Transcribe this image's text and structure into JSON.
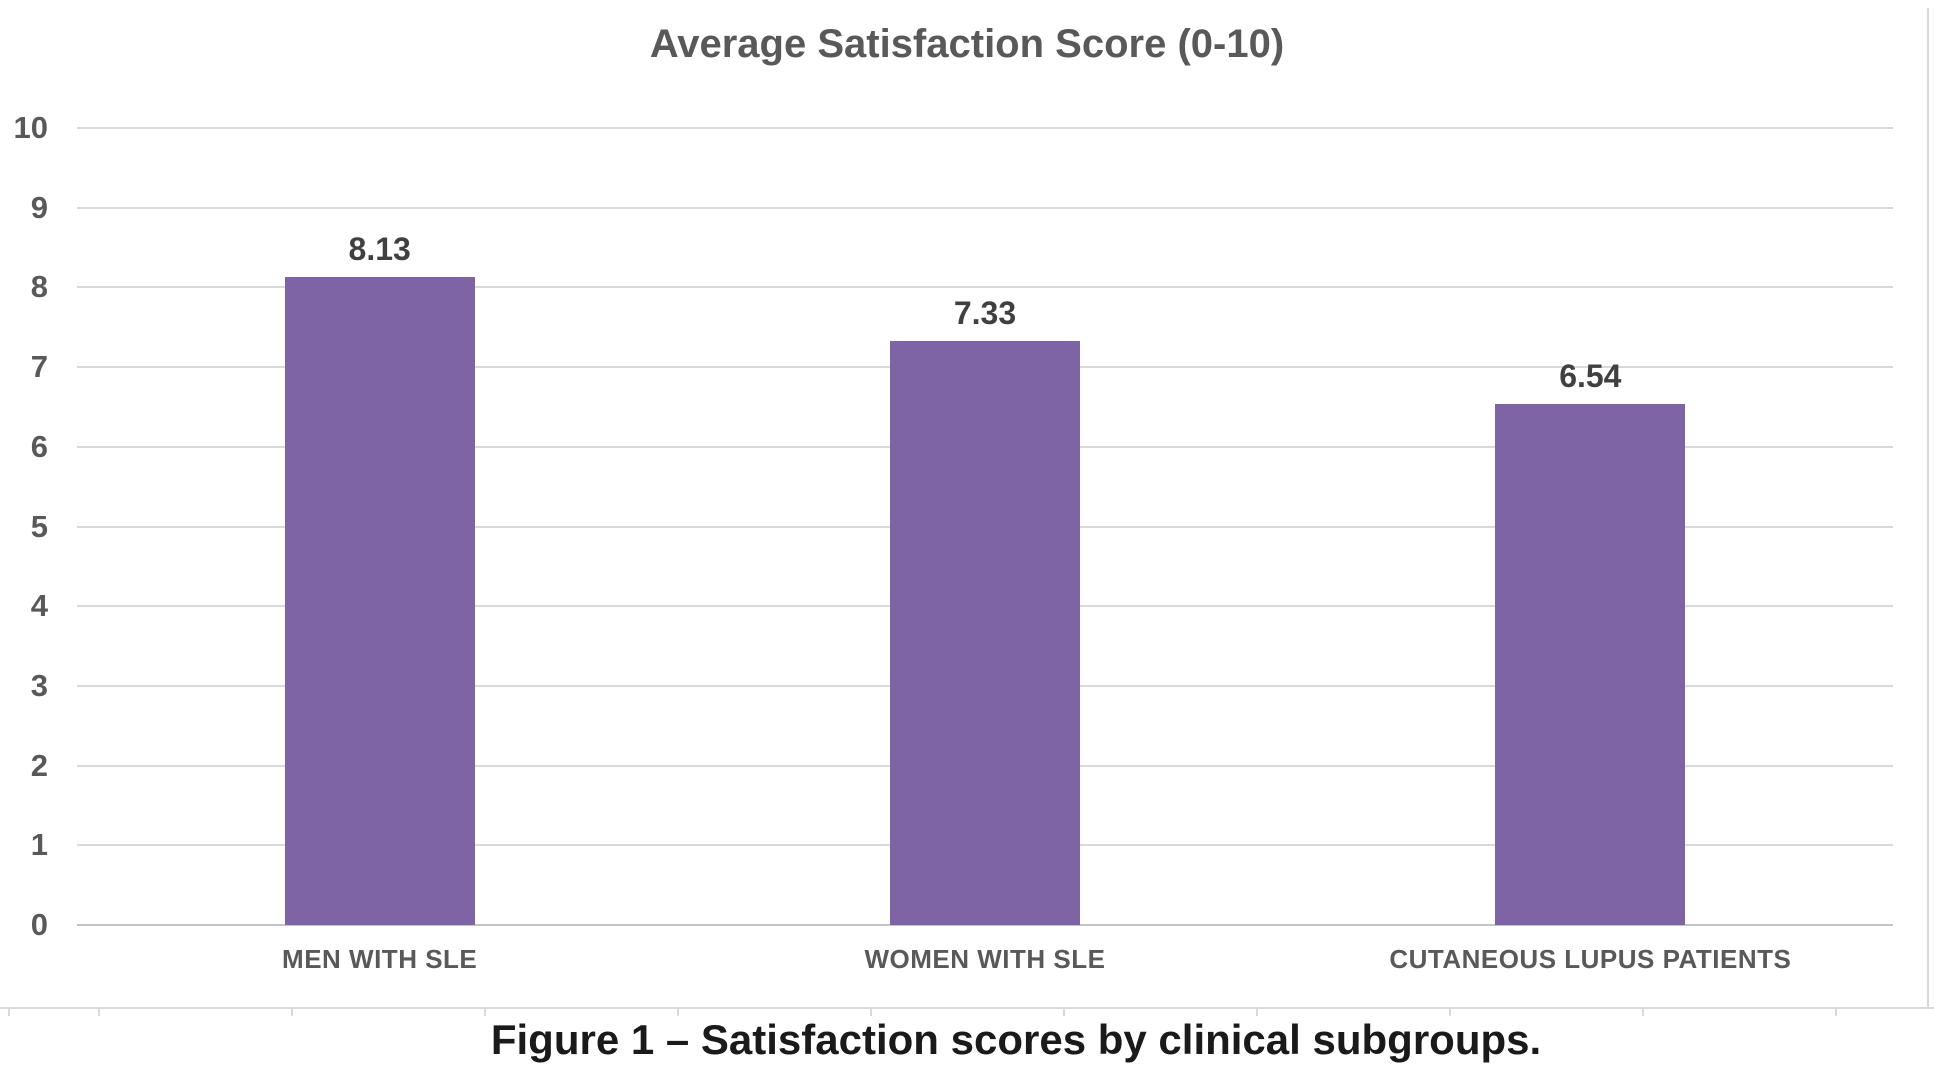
{
  "figure": {
    "caption": "Figure 1 – Satisfaction scores by clinical subgroups."
  },
  "chart_data": {
    "type": "bar",
    "title": "Average Satisfaction Score (0-10)",
    "categories": [
      "MEN WITH SLE",
      "WOMEN WITH SLE",
      "CUTANEOUS LUPUS PATIENTS"
    ],
    "values": [
      8.13,
      7.33,
      6.54
    ],
    "value_labels": [
      "8.13",
      "7.33",
      "6.54"
    ],
    "xlabel": "",
    "ylabel": "",
    "ylim": [
      0,
      10
    ],
    "y_ticks": [
      0,
      1,
      2,
      3,
      4,
      5,
      6,
      7,
      8,
      9,
      10
    ],
    "grid": "horizontal",
    "legend": "none",
    "colors": {
      "background": "#FFFFFF",
      "bar": "#7E63A5",
      "gridline": "#D9D9D9",
      "axis_line": "#C4C4C4",
      "title_text": "#595959",
      "axis_text": "#595959",
      "value_text": "#404040",
      "caption_text": "#1A1A1A",
      "border": "#D9D9D9"
    }
  }
}
